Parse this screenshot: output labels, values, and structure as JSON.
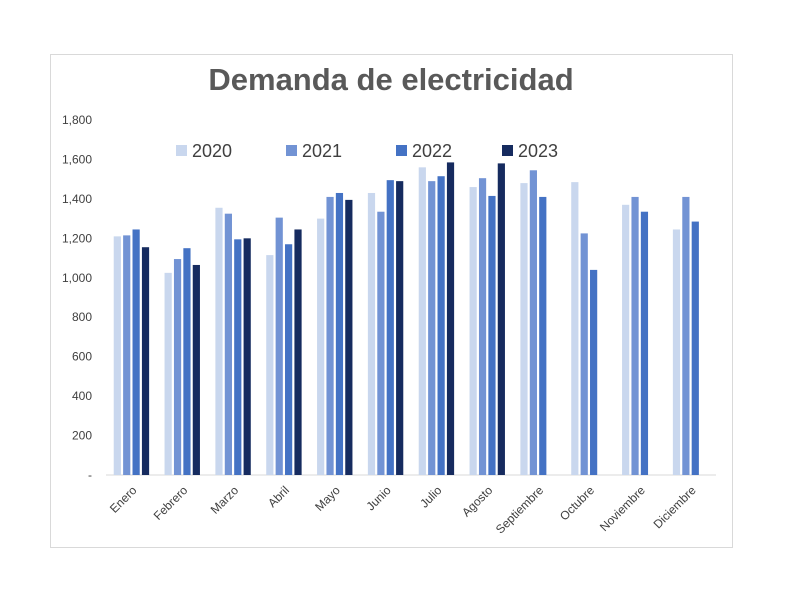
{
  "chart_data": {
    "type": "bar",
    "title": "Demanda de electricidad",
    "xlabel": "",
    "ylabel": "",
    "ylim": [
      0,
      1800
    ],
    "yticks": [
      0,
      200,
      400,
      600,
      800,
      1000,
      1200,
      1400,
      1600,
      1800
    ],
    "ytick_labels": [
      "-",
      "200",
      "400",
      "600",
      "800",
      "1,000",
      "1,200",
      "1,400",
      "1,600",
      "1,800"
    ],
    "categories": [
      "Enero",
      "Febrero",
      "Marzo",
      "Abril",
      "Mayo",
      "Junio",
      "Julio",
      "Agosto",
      "Septiembre",
      "Octubre",
      "Noviembre",
      "Diciembre"
    ],
    "series": [
      {
        "name": "2020",
        "color": "#c9d7ee",
        "values": [
          1210,
          1025,
          1355,
          1115,
          1300,
          1430,
          1560,
          1460,
          1480,
          1485,
          1370,
          1245
        ]
      },
      {
        "name": "2021",
        "color": "#7293d4",
        "values": [
          1215,
          1095,
          1325,
          1305,
          1410,
          1335,
          1490,
          1505,
          1545,
          1225,
          1410,
          1410
        ]
      },
      {
        "name": "2022",
        "color": "#4472c4",
        "values": [
          1245,
          1150,
          1195,
          1170,
          1430,
          1495,
          1515,
          1415,
          1410,
          1040,
          1335,
          1285
        ]
      },
      {
        "name": "2023",
        "color": "#162b5f",
        "values": [
          1155,
          1065,
          1200,
          1245,
          1395,
          1490,
          1585,
          1580,
          null,
          null,
          null,
          null
        ]
      }
    ],
    "grid": false,
    "legend_position": "top"
  }
}
